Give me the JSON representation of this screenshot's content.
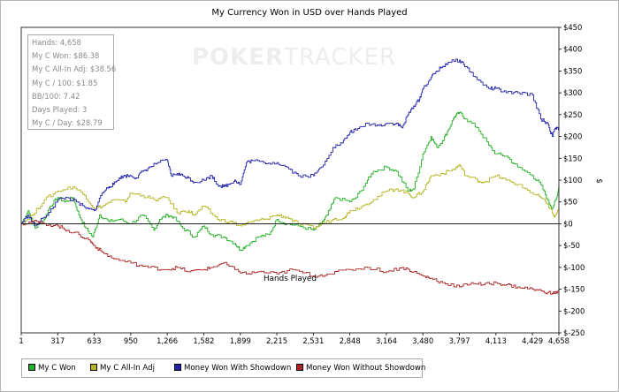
{
  "chart_data": {
    "type": "line",
    "title": "My Currency Won in USD over Hands Played",
    "xlabel": "Hands Played",
    "ylabel": "$",
    "xlim": [
      1,
      4658
    ],
    "ylim": [
      -250,
      450
    ],
    "x_ticks": [
      1,
      317,
      633,
      950,
      1266,
      1582,
      1899,
      2215,
      2531,
      2848,
      3164,
      3480,
      3797,
      4113,
      4429,
      4658
    ],
    "x_tick_labels": [
      "1",
      "317",
      "633",
      "950",
      "1,266",
      "1,582",
      "1,899",
      "2,215",
      "2,531",
      "2,848",
      "3,164",
      "3,480",
      "3,797",
      "4,113",
      "4,429",
      "4,658"
    ],
    "y_ticks": [
      -250,
      -200,
      -150,
      -100,
      -50,
      0,
      50,
      100,
      150,
      200,
      250,
      300,
      350,
      400,
      450
    ],
    "y_tick_labels": [
      "$-250",
      "$-200",
      "$-150",
      "$-100",
      "$-50",
      "$0",
      "$50",
      "$100",
      "$150",
      "$200",
      "$250",
      "$300",
      "$350",
      "$400",
      "$450"
    ],
    "legend_position": "bottom-left",
    "grid": false,
    "series": [
      {
        "name": "My C Won",
        "color": "#22b022",
        "points": [
          [
            1,
            0
          ],
          [
            60,
            30
          ],
          [
            120,
            -10
          ],
          [
            200,
            10
          ],
          [
            250,
            40
          ],
          [
            317,
            60
          ],
          [
            380,
            50
          ],
          [
            450,
            60
          ],
          [
            500,
            20
          ],
          [
            560,
            -10
          ],
          [
            620,
            -30
          ],
          [
            680,
            20
          ],
          [
            760,
            5
          ],
          [
            850,
            10
          ],
          [
            950,
            0
          ],
          [
            1050,
            20
          ],
          [
            1150,
            -15
          ],
          [
            1200,
            10
          ],
          [
            1266,
            20
          ],
          [
            1320,
            15
          ],
          [
            1400,
            -10
          ],
          [
            1500,
            -30
          ],
          [
            1582,
            -5
          ],
          [
            1650,
            -25
          ],
          [
            1750,
            -30
          ],
          [
            1850,
            -45
          ],
          [
            1899,
            -60
          ],
          [
            1950,
            -50
          ],
          [
            2050,
            -30
          ],
          [
            2150,
            -25
          ],
          [
            2215,
            10
          ],
          [
            2300,
            0
          ],
          [
            2400,
            -5
          ],
          [
            2531,
            -15
          ],
          [
            2600,
            0
          ],
          [
            2650,
            20
          ],
          [
            2720,
            60
          ],
          [
            2848,
            50
          ],
          [
            2900,
            60
          ],
          [
            3000,
            100
          ],
          [
            3050,
            120
          ],
          [
            3164,
            130
          ],
          [
            3250,
            120
          ],
          [
            3350,
            75
          ],
          [
            3400,
            80
          ],
          [
            3480,
            160
          ],
          [
            3550,
            200
          ],
          [
            3600,
            175
          ],
          [
            3650,
            190
          ],
          [
            3700,
            215
          ],
          [
            3750,
            245
          ],
          [
            3797,
            255
          ],
          [
            3850,
            240
          ],
          [
            3950,
            220
          ],
          [
            4050,
            180
          ],
          [
            4113,
            160
          ],
          [
            4200,
            155
          ],
          [
            4300,
            130
          ],
          [
            4429,
            110
          ],
          [
            4500,
            90
          ],
          [
            4560,
            55
          ],
          [
            4600,
            35
          ],
          [
            4640,
            60
          ],
          [
            4658,
            85
          ]
        ]
      },
      {
        "name": "My C All-In Adj",
        "color": "#b5b522",
        "points": [
          [
            1,
            0
          ],
          [
            100,
            20
          ],
          [
            200,
            55
          ],
          [
            317,
            75
          ],
          [
            450,
            85
          ],
          [
            550,
            65
          ],
          [
            633,
            35
          ],
          [
            700,
            40
          ],
          [
            800,
            55
          ],
          [
            900,
            50
          ],
          [
            950,
            70
          ],
          [
            1050,
            65
          ],
          [
            1150,
            55
          ],
          [
            1266,
            60
          ],
          [
            1350,
            25
          ],
          [
            1450,
            30
          ],
          [
            1500,
            20
          ],
          [
            1582,
            40
          ],
          [
            1700,
            10
          ],
          [
            1800,
            5
          ],
          [
            1899,
            -5
          ],
          [
            2000,
            5
          ],
          [
            2100,
            10
          ],
          [
            2215,
            20
          ],
          [
            2300,
            15
          ],
          [
            2400,
            0
          ],
          [
            2531,
            -10
          ],
          [
            2600,
            0
          ],
          [
            2700,
            10
          ],
          [
            2800,
            15
          ],
          [
            2848,
            30
          ],
          [
            2950,
            40
          ],
          [
            3050,
            55
          ],
          [
            3164,
            75
          ],
          [
            3250,
            80
          ],
          [
            3350,
            70
          ],
          [
            3400,
            60
          ],
          [
            3480,
            75
          ],
          [
            3550,
            110
          ],
          [
            3650,
            115
          ],
          [
            3750,
            125
          ],
          [
            3797,
            135
          ],
          [
            3850,
            110
          ],
          [
            3950,
            100
          ],
          [
            4000,
            95
          ],
          [
            4113,
            110
          ],
          [
            4200,
            100
          ],
          [
            4300,
            90
          ],
          [
            4429,
            70
          ],
          [
            4500,
            60
          ],
          [
            4560,
            45
          ],
          [
            4620,
            15
          ],
          [
            4658,
            35
          ]
        ]
      },
      {
        "name": "Money Won With Showdown",
        "color": "#2222aa",
        "points": [
          [
            1,
            0
          ],
          [
            60,
            20
          ],
          [
            120,
            -5
          ],
          [
            200,
            15
          ],
          [
            317,
            55
          ],
          [
            400,
            60
          ],
          [
            480,
            50
          ],
          [
            560,
            35
          ],
          [
            633,
            30
          ],
          [
            700,
            70
          ],
          [
            760,
            85
          ],
          [
            800,
            90
          ],
          [
            850,
            105
          ],
          [
            900,
            110
          ],
          [
            950,
            110
          ],
          [
            1000,
            105
          ],
          [
            1050,
            120
          ],
          [
            1120,
            130
          ],
          [
            1180,
            140
          ],
          [
            1266,
            145
          ],
          [
            1300,
            110
          ],
          [
            1350,
            115
          ],
          [
            1400,
            110
          ],
          [
            1450,
            105
          ],
          [
            1500,
            95
          ],
          [
            1582,
            100
          ],
          [
            1650,
            110
          ],
          [
            1700,
            90
          ],
          [
            1750,
            85
          ],
          [
            1800,
            90
          ],
          [
            1850,
            100
          ],
          [
            1899,
            90
          ],
          [
            1950,
            140
          ],
          [
            2000,
            145
          ],
          [
            2100,
            140
          ],
          [
            2215,
            140
          ],
          [
            2300,
            130
          ],
          [
            2400,
            110
          ],
          [
            2531,
            110
          ],
          [
            2600,
            130
          ],
          [
            2700,
            175
          ],
          [
            2780,
            185
          ],
          [
            2848,
            210
          ],
          [
            2900,
            215
          ],
          [
            3000,
            230
          ],
          [
            3100,
            225
          ],
          [
            3164,
            230
          ],
          [
            3250,
            230
          ],
          [
            3300,
            220
          ],
          [
            3350,
            250
          ],
          [
            3400,
            270
          ],
          [
            3450,
            285
          ],
          [
            3480,
            310
          ],
          [
            3550,
            335
          ],
          [
            3600,
            350
          ],
          [
            3650,
            360
          ],
          [
            3700,
            370
          ],
          [
            3797,
            375
          ],
          [
            3850,
            360
          ],
          [
            3950,
            330
          ],
          [
            4050,
            310
          ],
          [
            4113,
            310
          ],
          [
            4200,
            300
          ],
          [
            4300,
            300
          ],
          [
            4429,
            295
          ],
          [
            4500,
            240
          ],
          [
            4560,
            230
          ],
          [
            4600,
            200
          ],
          [
            4630,
            220
          ],
          [
            4658,
            215
          ]
        ]
      },
      {
        "name": "Money Won Without Showdown",
        "color": "#aa2222",
        "points": [
          [
            1,
            0
          ],
          [
            100,
            5
          ],
          [
            200,
            0
          ],
          [
            317,
            -5
          ],
          [
            400,
            -15
          ],
          [
            500,
            -25
          ],
          [
            600,
            -40
          ],
          [
            633,
            -50
          ],
          [
            700,
            -65
          ],
          [
            800,
            -80
          ],
          [
            950,
            -90
          ],
          [
            1100,
            -100
          ],
          [
            1266,
            -105
          ],
          [
            1350,
            -100
          ],
          [
            1450,
            -110
          ],
          [
            1582,
            -105
          ],
          [
            1650,
            -100
          ],
          [
            1750,
            -90
          ],
          [
            1850,
            -105
          ],
          [
            1950,
            -115
          ],
          [
            2050,
            -110
          ],
          [
            2215,
            -115
          ],
          [
            2350,
            -105
          ],
          [
            2531,
            -120
          ],
          [
            2650,
            -115
          ],
          [
            2848,
            -105
          ],
          [
            3000,
            -100
          ],
          [
            3164,
            -110
          ],
          [
            3300,
            -100
          ],
          [
            3400,
            -110
          ],
          [
            3480,
            -120
          ],
          [
            3550,
            -125
          ],
          [
            3650,
            -135
          ],
          [
            3797,
            -145
          ],
          [
            3900,
            -135
          ],
          [
            4000,
            -140
          ],
          [
            4113,
            -135
          ],
          [
            4200,
            -140
          ],
          [
            4300,
            -145
          ],
          [
            4429,
            -150
          ],
          [
            4520,
            -155
          ],
          [
            4600,
            -160
          ],
          [
            4658,
            -155
          ]
        ]
      }
    ]
  },
  "stats": [
    "Hands: 4,658",
    "My C Won: $86.38",
    "My C All-In Adj: $38.56",
    "My C / 100: $1.85",
    "BB/100: 7.42",
    "Days Played: 3",
    "My C / Day: $28.79"
  ],
  "watermark": {
    "brand_part1": "POKER",
    "brand_part2": "TRACKER"
  }
}
